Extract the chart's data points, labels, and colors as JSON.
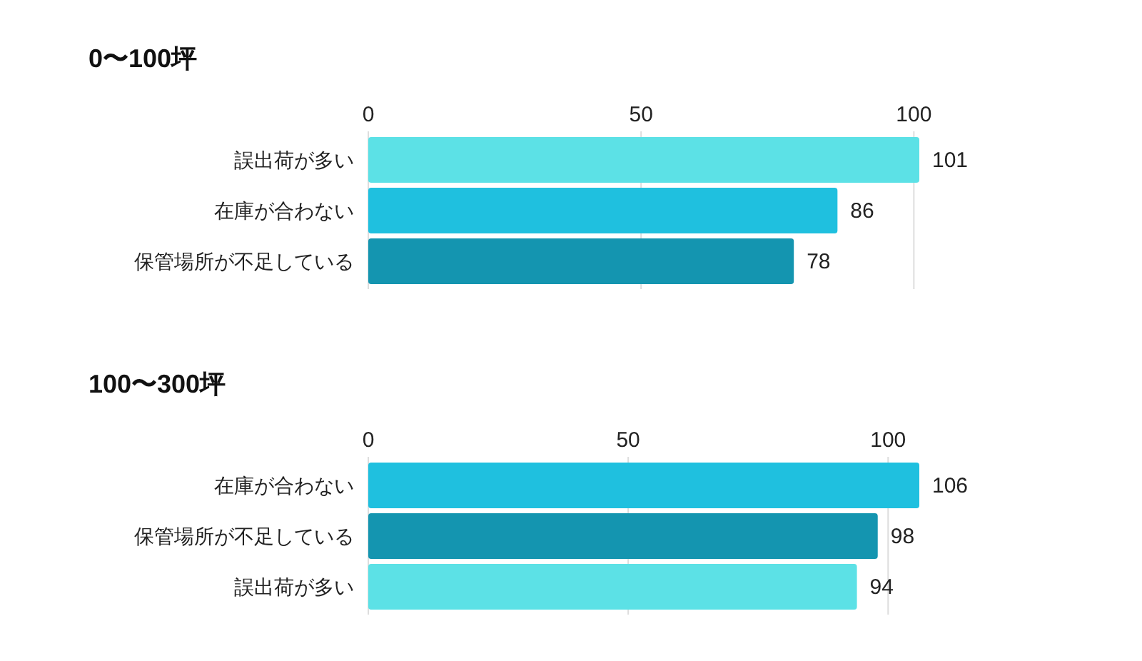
{
  "chart_data": [
    {
      "type": "bar",
      "orientation": "horizontal",
      "title": "0〜100坪",
      "categories": [
        "誤出荷が多い",
        "在庫が合わない",
        "保管場所が不足している"
      ],
      "values": [
        101,
        86,
        78
      ],
      "colors": [
        "#5ce1e6",
        "#1fc0df",
        "#1495b0"
      ],
      "xlim": [
        0,
        101
      ],
      "xticks": [
        0,
        50,
        100
      ],
      "grid": "x",
      "data_labels": true
    },
    {
      "type": "bar",
      "orientation": "horizontal",
      "title": "100〜300坪",
      "categories": [
        "在庫が合わない",
        "保管場所が不足している",
        "誤出荷が多い"
      ],
      "values": [
        106,
        98,
        94
      ],
      "colors": [
        "#1fc0df",
        "#1495b0",
        "#5ce1e6"
      ],
      "xlim": [
        0,
        106
      ],
      "xticks": [
        0,
        50,
        100
      ],
      "grid": "x",
      "data_labels": true
    }
  ]
}
